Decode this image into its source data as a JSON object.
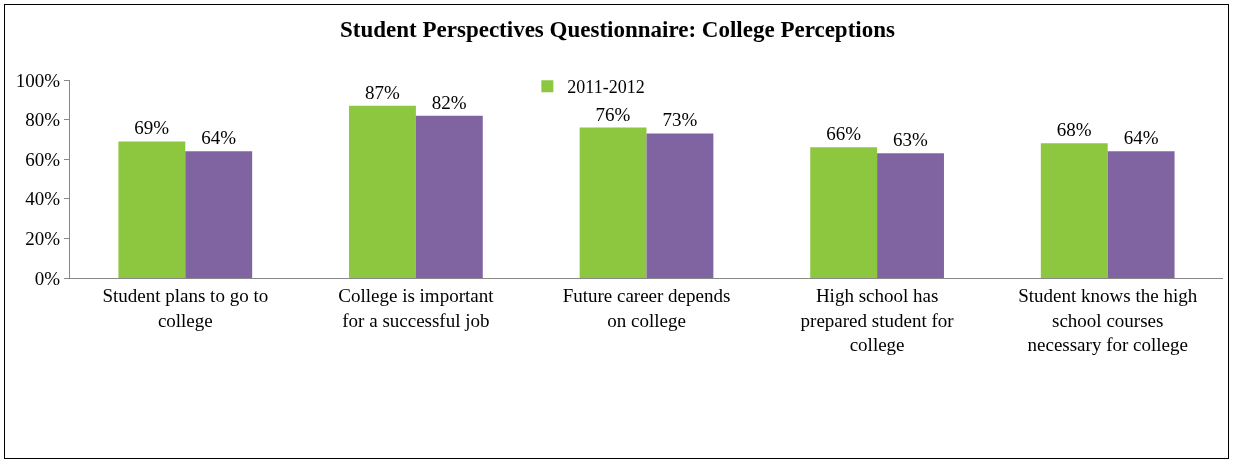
{
  "chart_data": {
    "type": "bar",
    "title": "Student Perspectives Questionnaire: College Perceptions",
    "categories": [
      "Student plans to go to college",
      "College is important for a successful job",
      "Future career depends on college",
      "High school has prepared student for college",
      "Student knows the high school courses necessary for college"
    ],
    "series": [
      {
        "name": "2011-2012",
        "color": "#8dc63f",
        "values": [
          69,
          87,
          76,
          66,
          68
        ],
        "value_labels": [
          "69%",
          "87%",
          "76%",
          "66%",
          "68%"
        ]
      },
      {
        "color": "#8064a2",
        "values": [
          64,
          82,
          73,
          63,
          64
        ],
        "value_labels": [
          "64%",
          "82%",
          "73%",
          "63%",
          "64%"
        ]
      }
    ],
    "ylim": [
      0,
      100
    ],
    "yticks": [
      {
        "value": 0,
        "label": "0%"
      },
      {
        "value": 20,
        "label": "20%"
      },
      {
        "value": 40,
        "label": "40%"
      },
      {
        "value": 60,
        "label": "60%"
      },
      {
        "value": 80,
        "label": "80%"
      },
      {
        "value": 100,
        "label": "100%"
      }
    ],
    "grid": false,
    "legend": "top"
  }
}
